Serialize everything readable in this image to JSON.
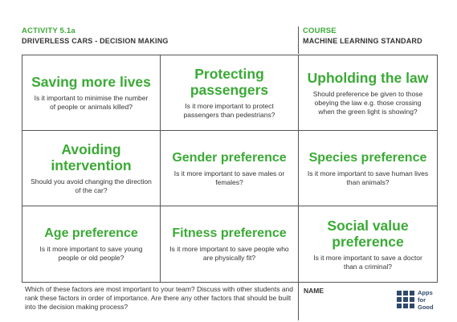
{
  "header": {
    "activity": "ACTIVITY 5.1a",
    "activity_title": "DRIVERLESS CARS - DECISION MAKING",
    "course_label": "COURSE",
    "course_name": "MACHINE LEARNING STANDARD"
  },
  "cells": [
    {
      "title": "Saving more lives",
      "desc": "Is it important to minimise the number of people or animals killed?"
    },
    {
      "title": "Protecting passengers",
      "desc": "Is it more important to protect passengers than pedestrians?"
    },
    {
      "title": "Upholding the law",
      "desc": "Should preference be given to those obeying the law e.g. those crossing when the green light is showing?"
    },
    {
      "title": "Avoiding intervention",
      "desc": "Should you avoid changing the direction of the car?"
    },
    {
      "title": "Gender preference",
      "desc": "Is it more important to save males or females?"
    },
    {
      "title": "Species preference",
      "desc": "Is it more important to save human lives than animals?"
    },
    {
      "title": "Age preference",
      "desc": "Is it more important to save young people or old people?"
    },
    {
      "title": "Fitness preference",
      "desc": "Is it more important to save people who are physically fit?"
    },
    {
      "title": "Social value preference",
      "desc": "Is it more important to save a doctor than a criminal?"
    }
  ],
  "footer": {
    "question": "Which of these factors are most important to your team? Discuss with other students and rank these factors in order of importance. Are there any other factors that should be built into the decision making process?",
    "name_label": "NAME"
  },
  "logo": {
    "line1": "Apps",
    "line2": "for",
    "line3": "Good",
    "color": "#2f4a6b"
  },
  "colors": {
    "accent_green": "#3aaa35",
    "text": "#333333"
  }
}
